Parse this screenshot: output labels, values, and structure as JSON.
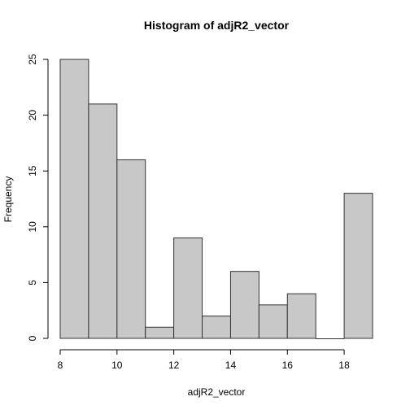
{
  "chart_data": {
    "type": "bar",
    "title": "Histogram of adjR2_vector",
    "xlabel": "adjR2_vector",
    "ylabel": "Frequency",
    "bins": [
      {
        "start": 8,
        "end": 9,
        "value": 25
      },
      {
        "start": 9,
        "end": 10,
        "value": 21
      },
      {
        "start": 10,
        "end": 11,
        "value": 16
      },
      {
        "start": 11,
        "end": 12,
        "value": 1
      },
      {
        "start": 12,
        "end": 13,
        "value": 9
      },
      {
        "start": 13,
        "end": 14,
        "value": 2
      },
      {
        "start": 14,
        "end": 15,
        "value": 6
      },
      {
        "start": 15,
        "end": 16,
        "value": 3
      },
      {
        "start": 16,
        "end": 17,
        "value": 4
      },
      {
        "start": 17,
        "end": 18,
        "value": 0
      },
      {
        "start": 18,
        "end": 19,
        "value": 13
      }
    ],
    "xlim": [
      8,
      19
    ],
    "ylim": [
      0,
      25
    ],
    "x_ticks": [
      8,
      10,
      12,
      14,
      16,
      18
    ],
    "y_ticks": [
      0,
      5,
      10,
      15,
      20,
      25
    ],
    "bar_color": "#c8c8c8",
    "bar_border_color": "#333333",
    "grid": false
  }
}
